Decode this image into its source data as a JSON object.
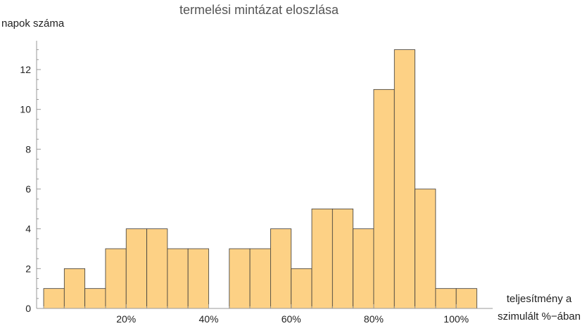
{
  "chart_data": {
    "type": "bar",
    "title": "termelési mintázat eloszlása",
    "ylabel": "napok száma",
    "xlabel_lines": [
      "teljesítmény a",
      "szimulált %−ában"
    ],
    "bin_width": 5,
    "bins": [
      {
        "start": 0,
        "value": 1
      },
      {
        "start": 5,
        "value": 2
      },
      {
        "start": 10,
        "value": 1
      },
      {
        "start": 15,
        "value": 3
      },
      {
        "start": 20,
        "value": 4
      },
      {
        "start": 25,
        "value": 4
      },
      {
        "start": 30,
        "value": 3
      },
      {
        "start": 35,
        "value": 3
      },
      {
        "start": 40,
        "value": 0
      },
      {
        "start": 45,
        "value": 3
      },
      {
        "start": 50,
        "value": 3
      },
      {
        "start": 55,
        "value": 4
      },
      {
        "start": 60,
        "value": 2
      },
      {
        "start": 65,
        "value": 5
      },
      {
        "start": 70,
        "value": 5
      },
      {
        "start": 75,
        "value": 4
      },
      {
        "start": 80,
        "value": 11
      },
      {
        "start": 85,
        "value": 13
      },
      {
        "start": 90,
        "value": 6
      },
      {
        "start": 95,
        "value": 1
      },
      {
        "start": 100,
        "value": 1
      }
    ],
    "xlim": [
      0,
      105
    ],
    "ylim": [
      0,
      13.5
    ],
    "x_ticks": [
      {
        "value": 20,
        "label": "20%"
      },
      {
        "value": 40,
        "label": "40%"
      },
      {
        "value": 60,
        "label": "60%"
      },
      {
        "value": 80,
        "label": "80%"
      },
      {
        "value": 100,
        "label": "100%"
      }
    ],
    "y_ticks": [
      {
        "value": 0,
        "label": "0"
      },
      {
        "value": 2,
        "label": "2"
      },
      {
        "value": 4,
        "label": "4"
      },
      {
        "value": 6,
        "label": "6"
      },
      {
        "value": 8,
        "label": "8"
      },
      {
        "value": 10,
        "label": "10"
      },
      {
        "value": 12,
        "label": "12"
      }
    ],
    "bar_color": "#fdd185",
    "bar_edge_color": "#3a3a3a"
  }
}
